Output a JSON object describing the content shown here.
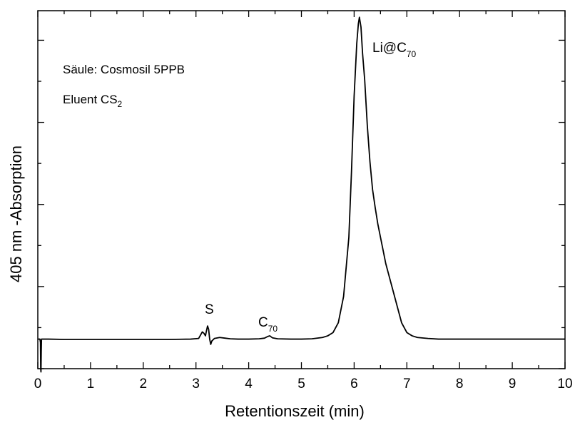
{
  "chart_data": {
    "type": "line",
    "title": "",
    "xlabel": "Retentionszeit  (min)",
    "ylabel": "405 nm -Absorption",
    "xlim": [
      0,
      10
    ],
    "ylim": [
      0,
      1.09
    ],
    "x_ticks": [
      "0",
      "1",
      "2",
      "3",
      "4",
      "5",
      "6",
      "7",
      "8",
      "9",
      "10"
    ],
    "y_tick_labels_shown": false,
    "grid": false,
    "legend": "none",
    "annotations": [
      {
        "text": "Säule: Cosmosil 5PPB"
      },
      {
        "text_main": "Eluent CS",
        "text_sub": "2"
      }
    ],
    "peak_labels": [
      {
        "name": "S",
        "text_main": "S",
        "text_sub": "",
        "x": 3.22
      },
      {
        "name": "C70",
        "text_main": "C",
        "text_sub": "70",
        "x": 4.38
      },
      {
        "name": "Li@C70",
        "text_main": "Li@C",
        "text_sub": "70",
        "x": 6.1
      }
    ],
    "series": [
      {
        "color": "#000000",
        "x": [
          0,
          0.04,
          0.05,
          0.055,
          0.06,
          0.065,
          0.07,
          0.08,
          0.2,
          0.5,
          1.0,
          1.5,
          2.0,
          2.5,
          2.9,
          3.05,
          3.12,
          3.15,
          3.18,
          3.2,
          3.22,
          3.24,
          3.26,
          3.28,
          3.3,
          3.35,
          3.45,
          3.55,
          3.65,
          3.8,
          4.0,
          4.2,
          4.3,
          4.36,
          4.4,
          4.45,
          4.55,
          4.8,
          5.0,
          5.2,
          5.4,
          5.5,
          5.6,
          5.7,
          5.8,
          5.9,
          5.95,
          6.0,
          6.05,
          6.08,
          6.1,
          6.13,
          6.16,
          6.2,
          6.25,
          6.3,
          6.35,
          6.4,
          6.45,
          6.5,
          6.55,
          6.6,
          6.65,
          6.7,
          6.8,
          6.9,
          7.0,
          7.1,
          7.2,
          7.4,
          7.6,
          8.0,
          9.0,
          10.0
        ],
        "y": [
          0.09,
          0.09,
          0.08,
          -0.0,
          -0.01,
          0.05,
          0.09,
          0.09,
          0.09,
          0.089,
          0.089,
          0.089,
          0.089,
          0.089,
          0.09,
          0.092,
          0.112,
          0.108,
          0.1,
          0.116,
          0.13,
          0.12,
          0.09,
          0.074,
          0.084,
          0.092,
          0.095,
          0.093,
          0.091,
          0.09,
          0.09,
          0.091,
          0.093,
          0.098,
          0.1,
          0.094,
          0.091,
          0.09,
          0.09,
          0.091,
          0.095,
          0.1,
          0.11,
          0.14,
          0.22,
          0.4,
          0.6,
          0.83,
          0.99,
          1.05,
          1.07,
          1.04,
          0.96,
          0.88,
          0.74,
          0.63,
          0.545,
          0.49,
          0.44,
          0.4,
          0.36,
          0.32,
          0.29,
          0.26,
          0.2,
          0.14,
          0.11,
          0.1,
          0.095,
          0.092,
          0.09,
          0.09,
          0.09,
          0.09
        ]
      }
    ]
  }
}
